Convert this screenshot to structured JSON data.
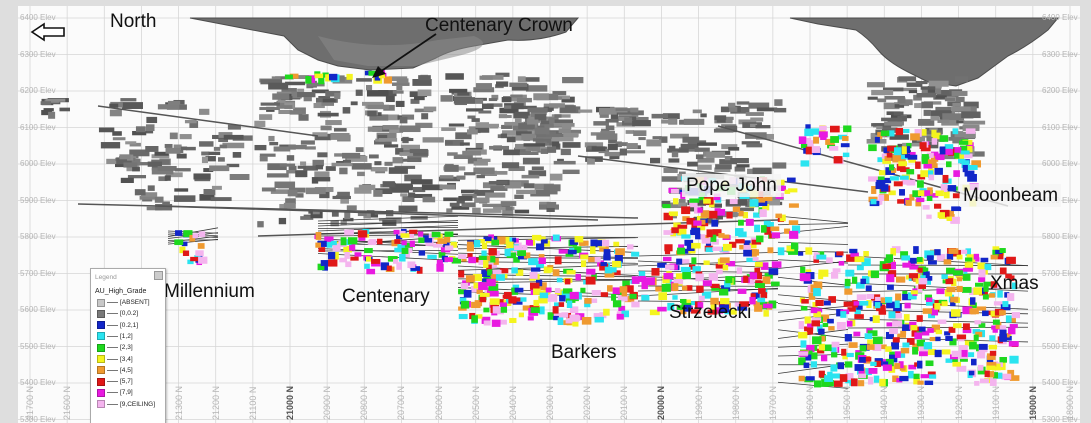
{
  "labels": {
    "north": "North",
    "centenary_crown": "Centenary Crown",
    "millennium": "Millennium",
    "centenary": "Centenary",
    "barkers": "Barkers",
    "strzelecki": "Strzelecki",
    "pope_john": "Pope John",
    "moonbeam": "Moonbeam",
    "xmas": "Xmas"
  },
  "elevations": [
    "6400 Elev",
    "6300 Elev",
    "6200 Elev",
    "6100 Elev",
    "6000 Elev",
    "5900 Elev",
    "5800 Elev",
    "5700 Elev",
    "5600 Elev",
    "5500 Elev",
    "5400 Elev",
    "5300 Elev"
  ],
  "northings": [
    "21700 N",
    "21600 N",
    "21500 N",
    "21400 N",
    "21300 N",
    "21200 N",
    "21100 N",
    "21000 N",
    "20900 N",
    "20800 N",
    "20700 N",
    "20600 N",
    "20500 N",
    "20400 N",
    "20300 N",
    "20200 N",
    "20100 N",
    "20000 N",
    "19900 N",
    "19800 N",
    "19700 N",
    "19600 N",
    "19500 N",
    "19400 N",
    "19300 N",
    "19200 N",
    "19100 N",
    "19000 N",
    "18900 N"
  ],
  "legend": {
    "title": "Legend",
    "field": "AU_High_Grade",
    "items": [
      {
        "label": "[ABSENT]",
        "color": "#c8c8c8"
      },
      {
        "label": "[0,0.2]",
        "color": "#7a7a7a"
      },
      {
        "label": "[0.2,1]",
        "color": "#1226c8"
      },
      {
        "label": "[1,2]",
        "color": "#2ae4f0"
      },
      {
        "label": "[2,3]",
        "color": "#1ed81e"
      },
      {
        "label": "[3,4]",
        "color": "#f4f41e"
      },
      {
        "label": "[4,5]",
        "color": "#ef9a30"
      },
      {
        "label": "[5,7]",
        "color": "#e01818"
      },
      {
        "label": "[7,9]",
        "color": "#e81ae0"
      },
      {
        "label": "[9,CEILING]",
        "color": "#f4b4ee"
      }
    ]
  },
  "colors": {
    "background": "#fbfbfb",
    "grid": "#d6d6d6",
    "development": "#7c7c7c",
    "pit": "#6a6a6a",
    "drill_trace": "#3a3a3a"
  },
  "icons": [
    "left-arrow-icon",
    "pointer-arrow-icon"
  ]
}
